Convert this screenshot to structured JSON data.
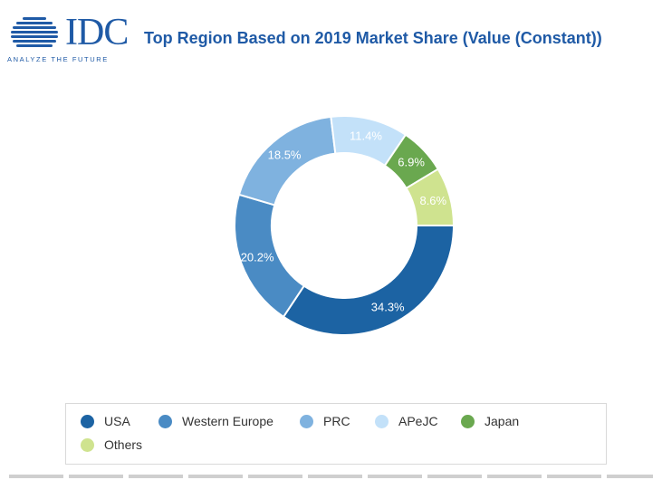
{
  "header": {
    "logo_text": "IDC",
    "logo_tagline": "ANALYZE THE FUTURE",
    "title": "Top Region Based on 2019 Market Share (Value (Constant))"
  },
  "colors": {
    "brand": "#1f5aa6"
  },
  "chart_data": {
    "type": "pie",
    "variant": "donut",
    "title": "Top Region Based on 2019 Market Share (Value (Constant))",
    "unit": "%",
    "legend_position": "bottom",
    "slices": [
      {
        "label": "USA",
        "value": 34.3,
        "display": "34.3%",
        "color": "#1c63a3"
      },
      {
        "label": "Western Europe",
        "value": 20.2,
        "display": "20.2%",
        "color": "#4a8bc4"
      },
      {
        "label": "PRC",
        "value": 18.5,
        "display": "18.5%",
        "color": "#7fb2df"
      },
      {
        "label": "APeJC",
        "value": 11.4,
        "display": "11.4%",
        "color": "#c3e1f9"
      },
      {
        "label": "Japan",
        "value": 6.9,
        "display": "6.9%",
        "color": "#6aa84f"
      },
      {
        "label": "Others",
        "value": 8.6,
        "display": "8.6%",
        "color": "#cfe38f"
      }
    ]
  }
}
